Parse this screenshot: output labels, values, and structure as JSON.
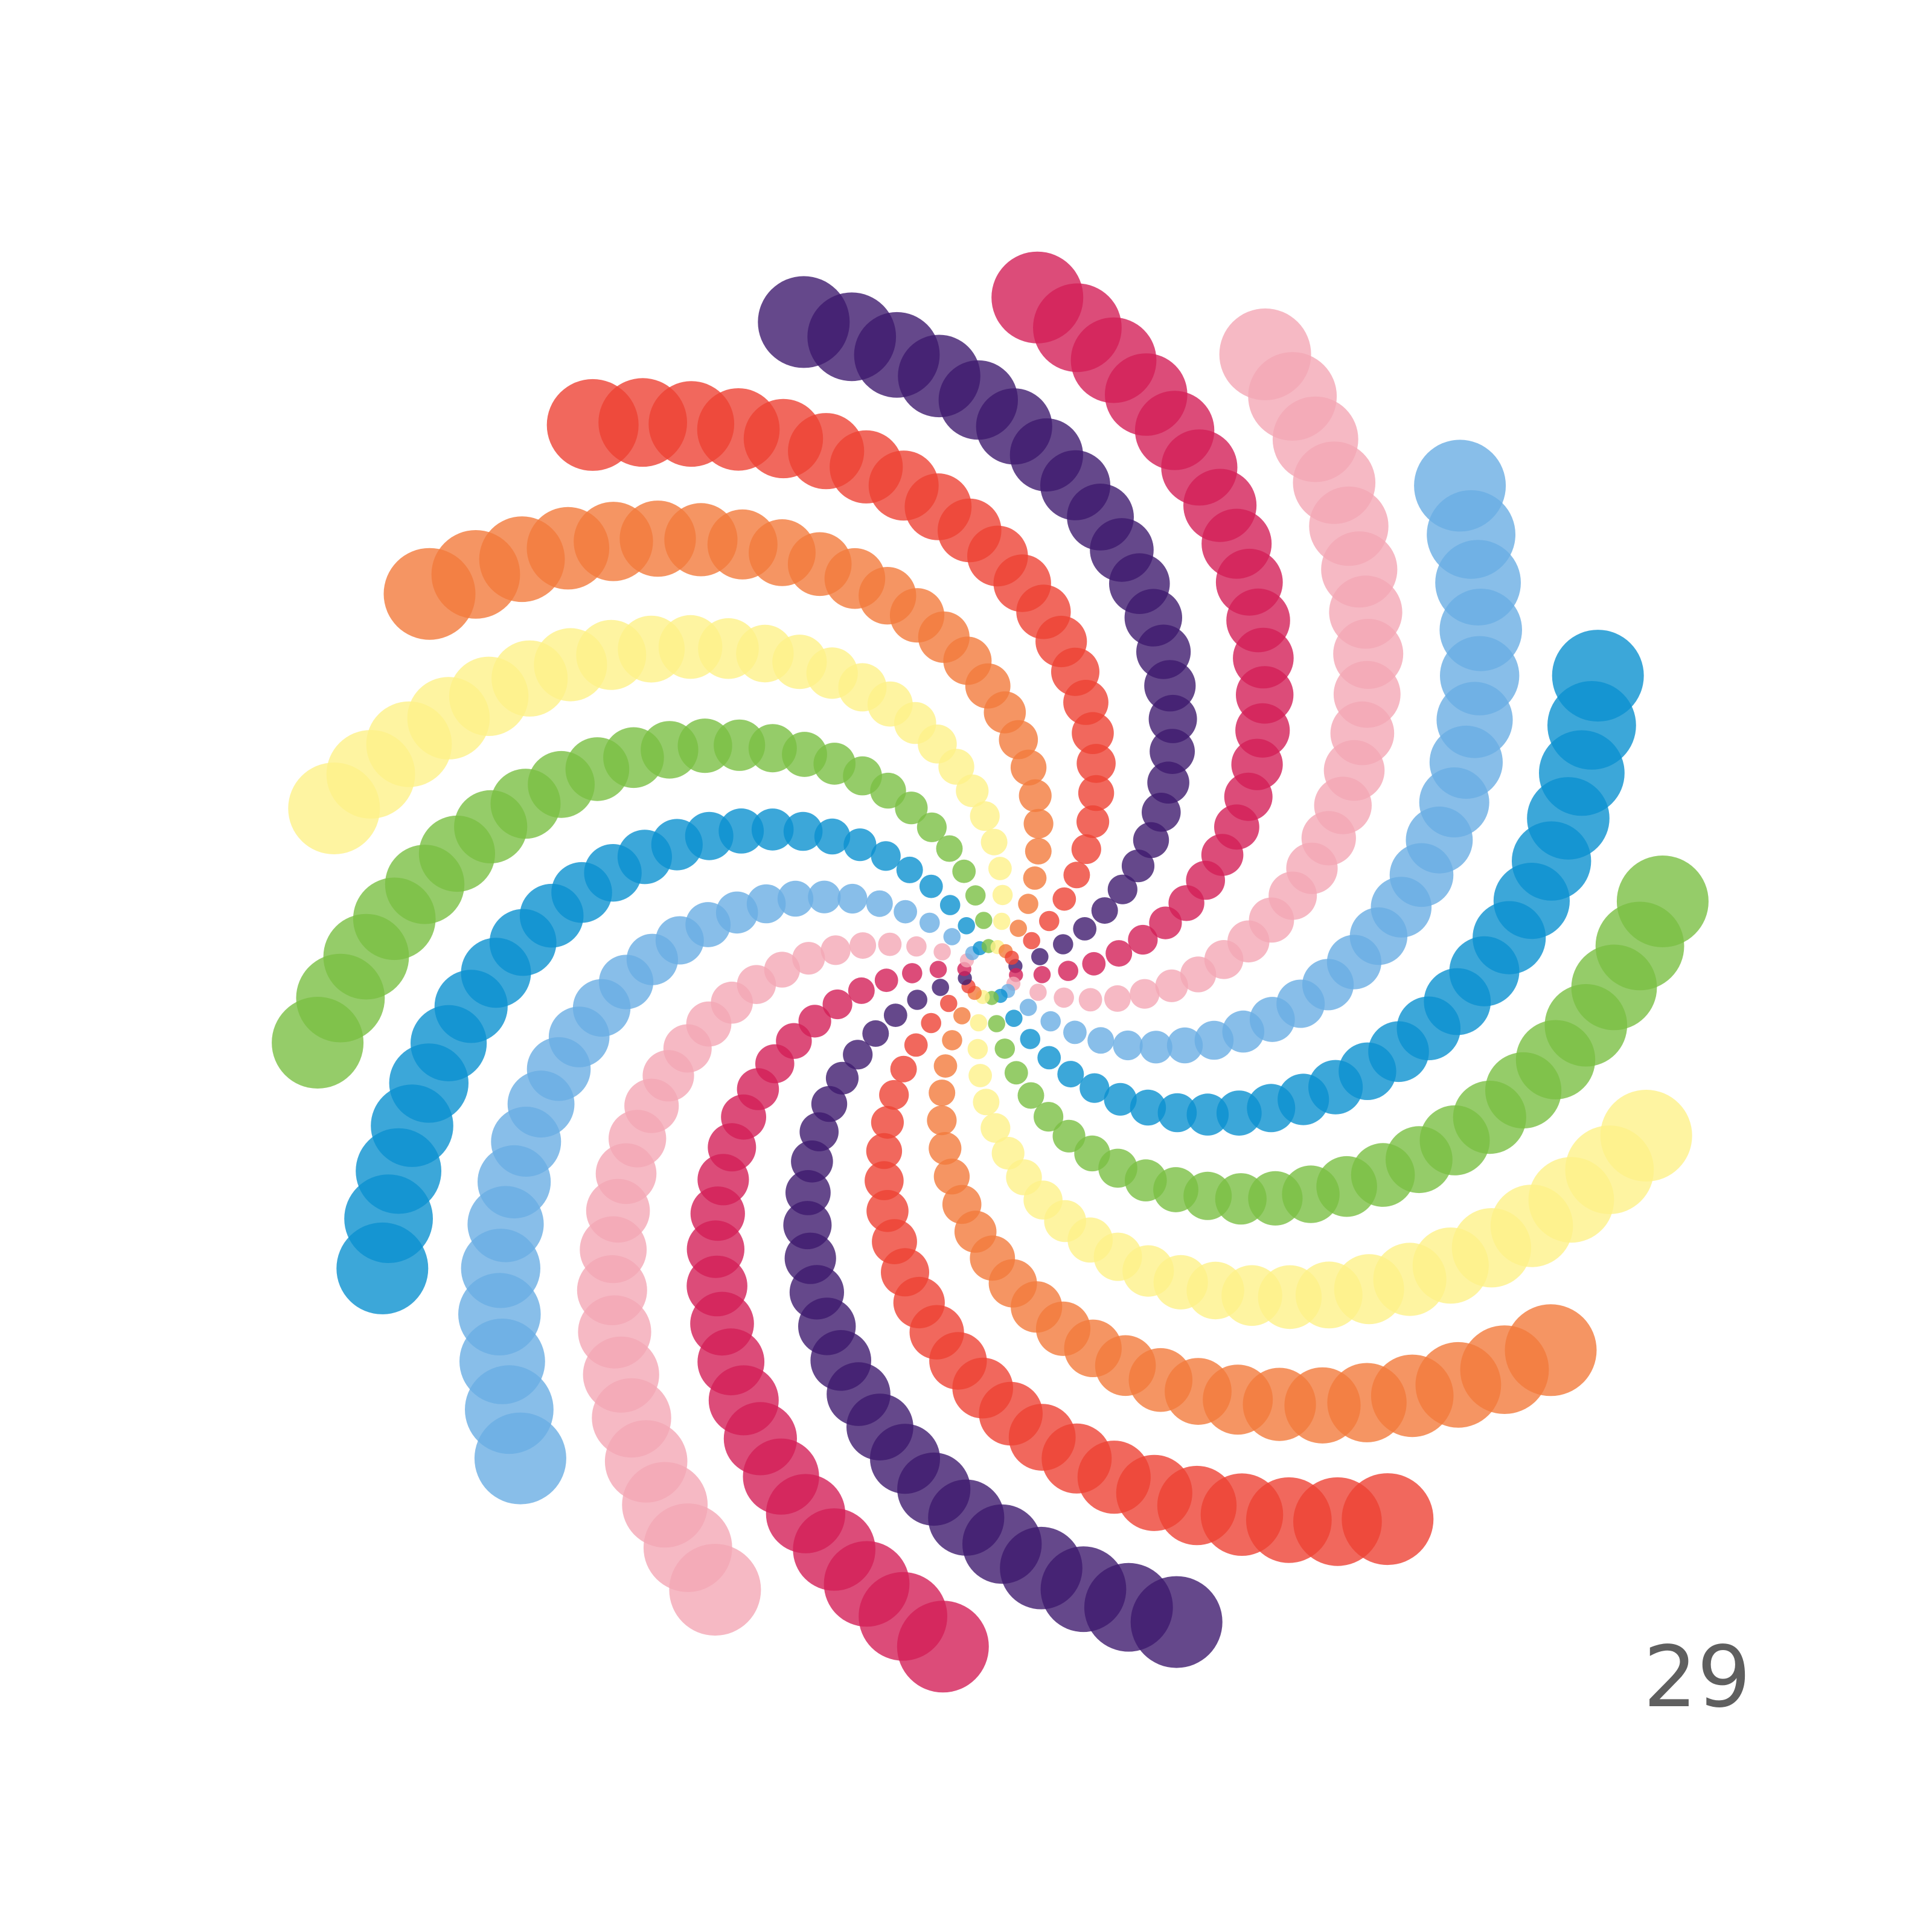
{
  "page_number": "29",
  "artwork": {
    "type": "spiral-dot-mandala",
    "palette": [
      {
        "name": "purple",
        "color": "#3e1a6e"
      },
      {
        "name": "crimson",
        "color": "#d31f57"
      },
      {
        "name": "pink",
        "color": "#f4a7b5"
      },
      {
        "name": "light-blue",
        "color": "#6aaee4"
      },
      {
        "name": "blue",
        "color": "#0b91d0"
      },
      {
        "name": "green",
        "color": "#7abf43"
      },
      {
        "name": "yellow",
        "color": "#fef18a"
      },
      {
        "name": "orange",
        "color": "#f27a3c"
      },
      {
        "name": "red",
        "color": "#ee4235"
      }
    ],
    "arms_per_color": 2,
    "dot_opacity": 0.8
  }
}
